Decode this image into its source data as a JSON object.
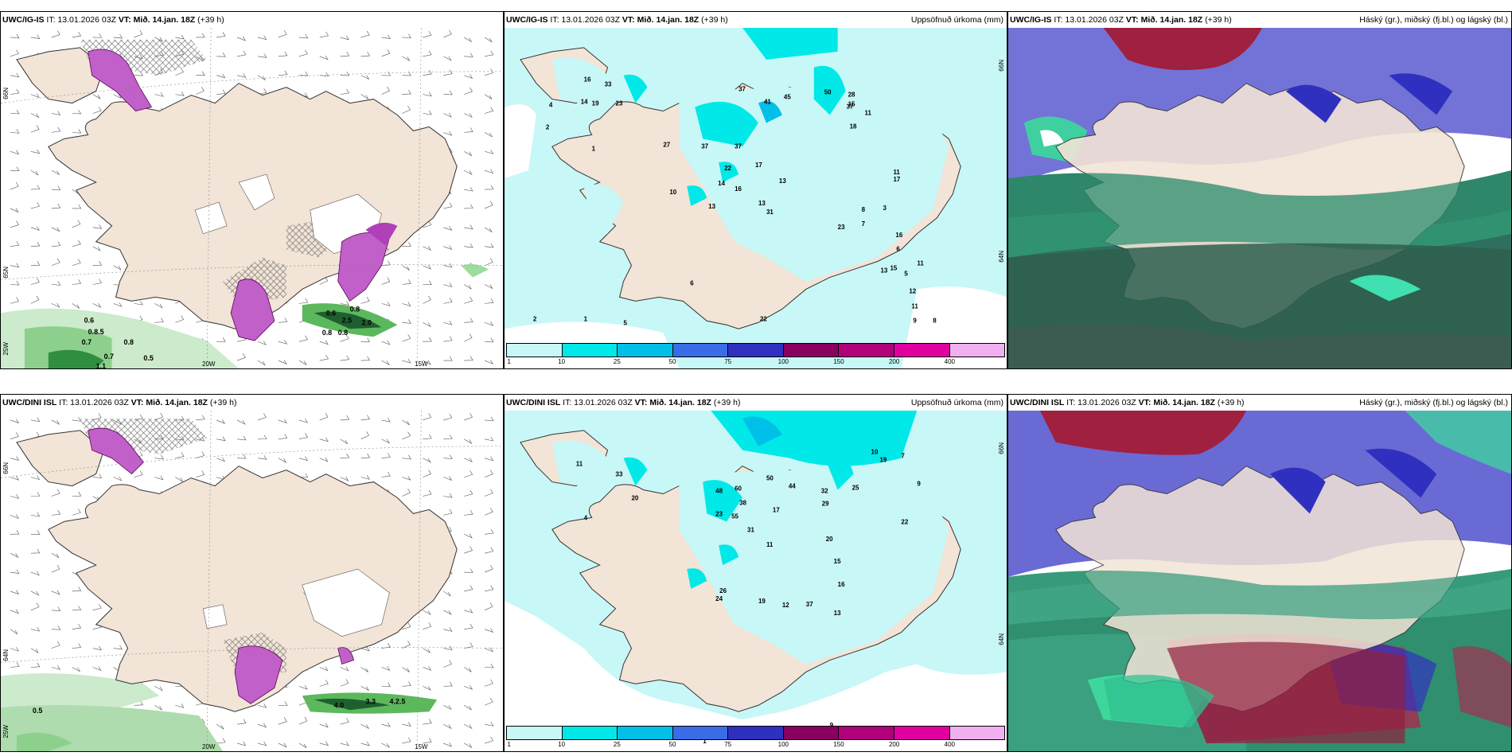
{
  "panels": {
    "p1": {
      "model": "UWC/IG-IS",
      "it": "IT: 13.01.2026 03Z",
      "vt_label": "VT:",
      "vt_value": "Mið. 14.jan. 18Z",
      "lead": "(+39 h)",
      "right": ""
    },
    "p2": {
      "model": "UWC/IG-IS",
      "it": "IT: 13.01.2026 03Z",
      "vt_label": "VT:",
      "vt_value": "Mið. 14.jan. 18Z",
      "lead": "(+39 h)",
      "right": "Uppsöfnuð úrkoma (mm)"
    },
    "p3": {
      "model": "UWC/IG-IS",
      "it": "IT: 13.01.2026 03Z",
      "vt_label": "VT:",
      "vt_value": "Mið. 14.jan. 18Z",
      "lead": "(+39 h)",
      "right": "Háský (gr.), miðský (fj.bl.) og lágský (bl.)"
    },
    "p4": {
      "model": "UWC/DINI ISL",
      "it": "IT: 13.01.2026 03Z",
      "vt_label": "VT:",
      "vt_value": "Mið. 14.jan. 18Z",
      "lead": "(+39 h)",
      "right": ""
    },
    "p5": {
      "model": "UWC/DINI ISL",
      "it": "IT: 13.01.2026 03Z",
      "vt_label": "VT:",
      "vt_value": "Mið. 14.jan. 18Z",
      "lead": "(+39 h)",
      "right": "Uppsöfnuð úrkoma (mm)"
    },
    "p6": {
      "model": "UWC/DINI ISL",
      "it": "IT: 13.01.2026 03Z",
      "vt_label": "VT:",
      "vt_value": "Mið. 14.jan. 18Z",
      "lead": "(+39 h)",
      "right": "Háský (gr.), miðský (fj.bl.) og lágský (bl.)"
    }
  },
  "axis_labels": {
    "lat_66": "66N",
    "lat_64": "64N",
    "lon_25": "25W",
    "lon_20": "20W",
    "lon_15": "15W",
    "lat_65": "65N"
  },
  "colorbar": {
    "labels": [
      "1",
      "10",
      "25",
      "50",
      "75",
      "100",
      "150",
      "200",
      "400"
    ],
    "colors": [
      "#c8f7f7",
      "#00e8e8",
      "#00c0e8",
      "#3a6ce8",
      "#3030c0",
      "#8a0060",
      "#b0007a",
      "#e000a0",
      "#f0b0f0"
    ]
  },
  "wind_gust_values_top": [
    "0.6",
    "0.8.5",
    "0.7",
    "0.8",
    "0.7",
    "1.1",
    "0.5",
    "0.8",
    "0.8",
    "2.5",
    "2.0",
    "0.6",
    "0.8"
  ],
  "wind_gust_values_bottom": [
    "0.5",
    "4.0",
    "3.3",
    "4.2.5"
  ],
  "precip_labels_top": [
    "16",
    "33",
    "19",
    "23",
    "14",
    "2",
    "4",
    "10",
    "37",
    "45",
    "41",
    "50",
    "37",
    "28",
    "37",
    "11",
    "18",
    "15",
    "27",
    "37",
    "16",
    "13",
    "14",
    "22",
    "17",
    "13",
    "13",
    "23",
    "8",
    "7",
    "3",
    "17",
    "16",
    "15",
    "13",
    "5",
    "6",
    "9",
    "11",
    "12",
    "31",
    "2",
    "1",
    "5",
    "1",
    "22",
    "6",
    "11",
    "11",
    "8"
  ],
  "precip_labels_bottom": [
    "11",
    "33",
    "20",
    "4",
    "48",
    "60",
    "38",
    "50",
    "44",
    "32",
    "29",
    "25",
    "19",
    "10",
    "7",
    "9",
    "31",
    "23",
    "55",
    "17",
    "11",
    "20",
    "22",
    "15",
    "16",
    "13",
    "24",
    "26",
    "19",
    "12",
    "37",
    "25",
    "26",
    "9",
    "1"
  ]
}
